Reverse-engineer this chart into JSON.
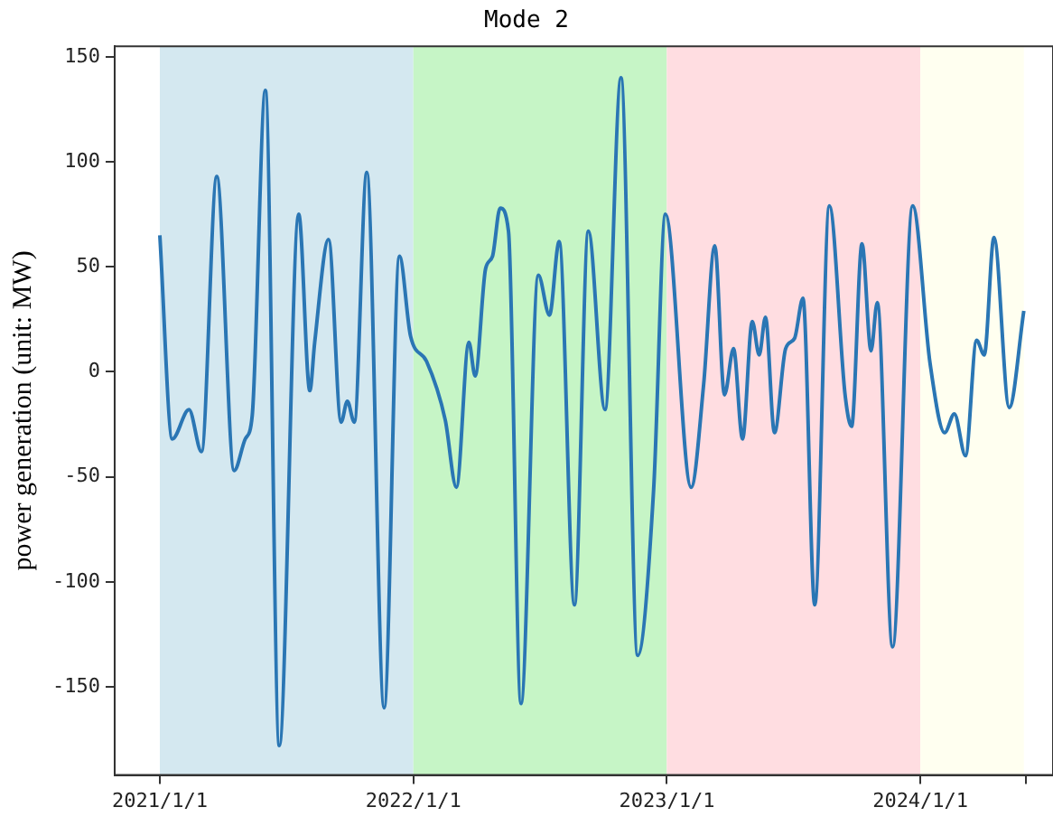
{
  "chart_data": {
    "type": "line",
    "title": "Mode 2",
    "ylabel": "power generation (unit: MW)",
    "x": [
      "2021-01-01",
      "2021-01-19",
      "2021-02-12",
      "2021-03-02",
      "2021-03-24",
      "2021-04-18",
      "2021-05-04",
      "2021-05-14",
      "2021-06-02",
      "2021-06-22",
      "2021-07-20",
      "2021-08-05",
      "2021-08-12",
      "2021-09-01",
      "2021-09-19",
      "2021-09-28",
      "2021-10-08",
      "2021-10-26",
      "2021-11-20",
      "2021-12-12",
      "2021-12-28",
      "2022-01-20",
      "2022-02-16",
      "2022-03-04",
      "2022-03-22",
      "2022-03-31",
      "2022-04-15",
      "2022-04-25",
      "2022-05-06",
      "2022-05-18",
      "2022-06-05",
      "2022-06-30",
      "2022-07-16",
      "2022-07-30",
      "2022-08-21",
      "2022-09-10",
      "2022-10-04",
      "2022-10-27",
      "2022-11-20",
      "2022-12-13",
      "2022-12-30",
      "2023-02-05",
      "2023-02-23",
      "2023-03-11",
      "2023-03-25",
      "2023-04-07",
      "2023-04-20",
      "2023-05-04",
      "2023-05-14",
      "2023-05-23",
      "2023-06-05",
      "2023-06-21",
      "2023-07-04",
      "2023-07-16",
      "2023-08-02",
      "2023-08-23",
      "2023-09-15",
      "2023-09-24",
      "2023-10-09",
      "2023-10-22",
      "2023-10-31",
      "2023-11-22",
      "2023-12-21",
      "2024-01-15",
      "2024-02-05",
      "2024-02-19",
      "2024-03-06",
      "2024-03-22",
      "2024-04-02",
      "2024-04-16",
      "2024-05-08",
      "2024-05-29"
    ],
    "series": [
      {
        "color": "#2a76b4",
        "values": [
          65,
          -32,
          -18,
          -38,
          93,
          -47,
          -32,
          -21,
          134,
          -178,
          75,
          -9,
          14,
          63,
          -24,
          -14,
          -24,
          95,
          -160,
          55,
          17,
          5,
          -23,
          -55,
          14,
          -2,
          49,
          55,
          78,
          67,
          -158,
          46,
          27,
          62,
          -111,
          67,
          -18,
          140,
          -135,
          -56,
          75,
          -55,
          -6,
          60,
          -11,
          11,
          -32,
          24,
          8,
          26,
          -29,
          11,
          16,
          35,
          -111,
          79,
          -12,
          -26,
          61,
          10,
          33,
          -131,
          79,
          4,
          -29,
          -20,
          -40,
          15,
          8,
          64,
          -17,
          29
        ]
      }
    ],
    "xlim": [
      "2020-10-28",
      "2024-07-10"
    ],
    "xticks": [
      {
        "value": "2021-01-01",
        "label": "2021/1/1"
      },
      {
        "value": "2022-01-01",
        "label": "2022/1/1"
      },
      {
        "value": "2023-01-01",
        "label": "2023/1/1"
      },
      {
        "value": "2024-01-01",
        "label": "2024/1/1"
      },
      {
        "value": "2024-06-01",
        "label": null
      }
    ],
    "ylim": [
      -192,
      155
    ],
    "yticks": [
      -150,
      -100,
      -50,
      0,
      50,
      100,
      150
    ],
    "bands": [
      {
        "axis": "x",
        "from": "2021-01-01",
        "to": "2022-01-01",
        "color": "#d4e8f0"
      },
      {
        "axis": "x",
        "from": "2022-01-01",
        "to": "2023-01-01",
        "color": "#c6f5c6"
      },
      {
        "axis": "x",
        "from": "2023-01-01",
        "to": "2024-01-01",
        "color": "#ffdde1"
      },
      {
        "axis": "x",
        "from": "2024-01-01",
        "to": "2024-05-29",
        "color": "#fffff0"
      }
    ],
    "grid": false,
    "legend": false,
    "marker": "none",
    "line_style": "solid"
  }
}
